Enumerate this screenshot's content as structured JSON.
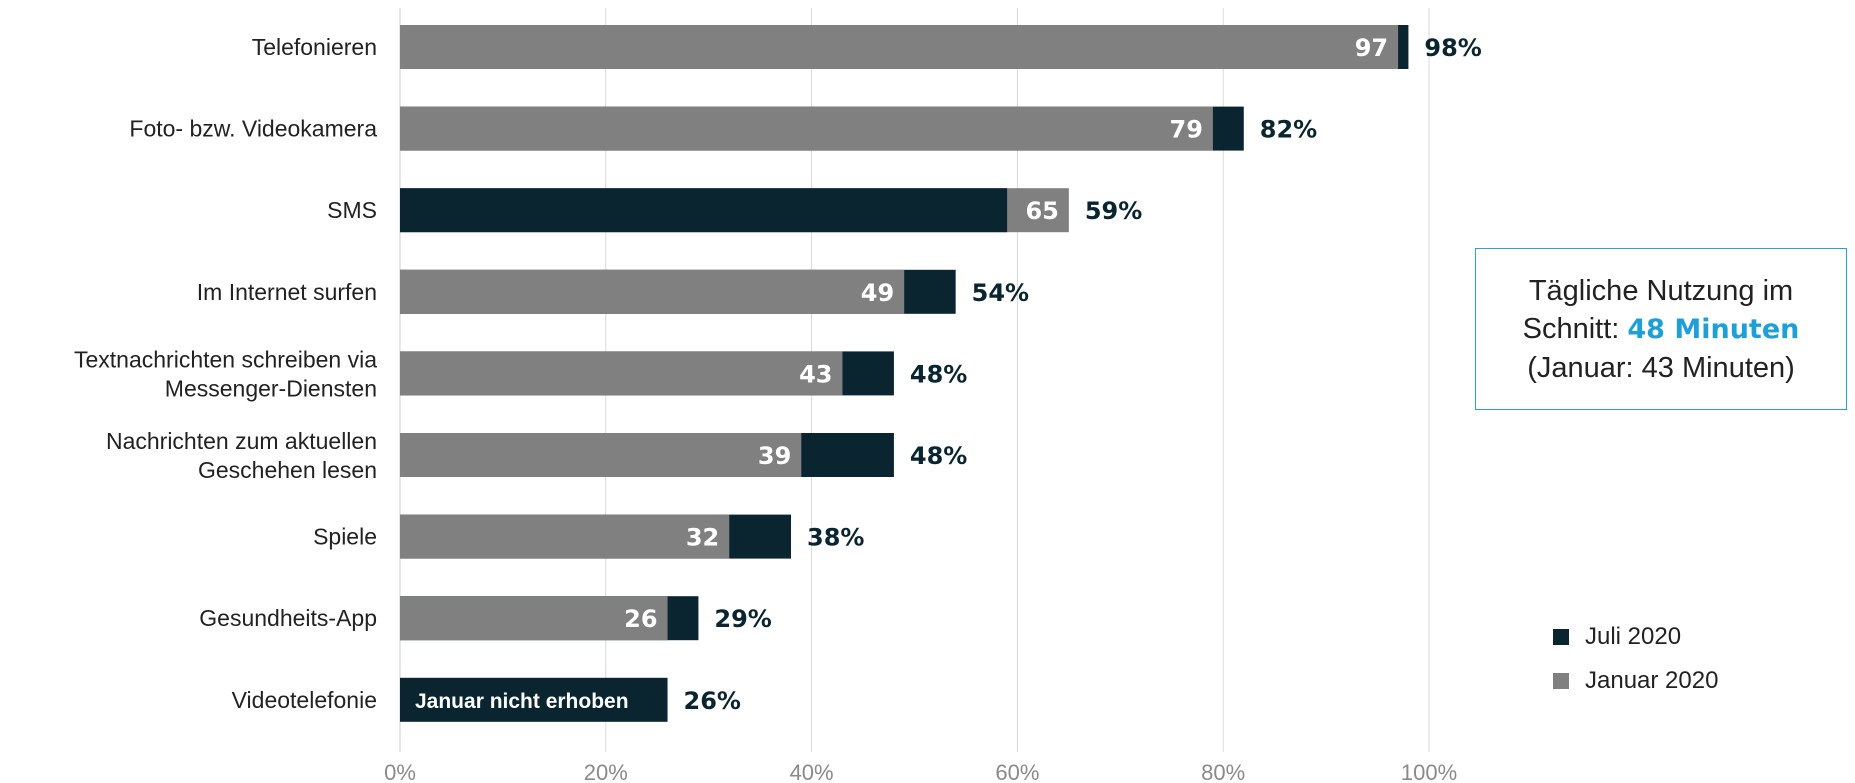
{
  "chart_data": {
    "type": "bar",
    "orientation": "horizontal",
    "stacking": "overlay",
    "categories": [
      [
        "Telefonieren"
      ],
      [
        "Foto- bzw. Videokamera"
      ],
      [
        "SMS"
      ],
      [
        "Im Internet surfen"
      ],
      [
        "Textnachrichten schreiben via",
        "Messenger-Diensten"
      ],
      [
        "Nachrichten zum aktuellen",
        "Geschehen lesen"
      ],
      [
        "Spiele"
      ],
      [
        "Gesundheits-App"
      ],
      [
        "Videotelefonie"
      ]
    ],
    "series": [
      {
        "name": "Juli 2020",
        "color": "#0a2530",
        "values": [
          98,
          82,
          59,
          54,
          48,
          48,
          38,
          29,
          26
        ]
      },
      {
        "name": "Januar 2020",
        "color": "#808080",
        "values": [
          97,
          79,
          65,
          49,
          43,
          39,
          32,
          26,
          null
        ]
      }
    ],
    "data_labels": {
      "juli": [
        "98%",
        "82%",
        "59%",
        "54%",
        "48%",
        "48%",
        "38%",
        "29%",
        "26%"
      ],
      "januar": [
        "97",
        "79",
        "65",
        "49",
        "43",
        "39",
        "32",
        "26",
        ""
      ]
    },
    "annotations": {
      "Videotelefonie": "Januar nicht erhoben"
    },
    "xlim": [
      0,
      100
    ],
    "xticks": [
      0,
      20,
      40,
      60,
      80,
      100
    ],
    "xtick_labels": [
      "0%",
      "20%",
      "40%",
      "60%",
      "80%",
      "100%"
    ],
    "grid": "vertical",
    "legend_position": "bottom-right"
  },
  "info_box": {
    "line1": "Tägliche Nutzung im",
    "line2_prefix": "Schnitt: ",
    "line2_highlight": "48 Minuten",
    "line3": "(Januar: 43 Minuten)"
  },
  "legend": [
    {
      "label": "Juli 2020",
      "color": "#0a2530"
    },
    {
      "label": "Januar 2020",
      "color": "#808080"
    }
  ]
}
